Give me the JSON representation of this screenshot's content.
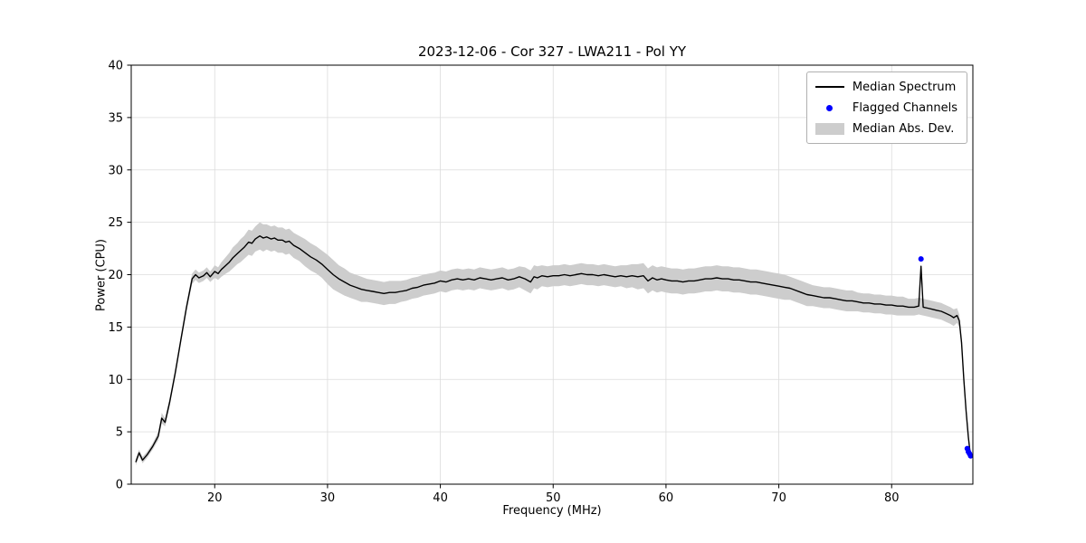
{
  "chart_data": {
    "type": "line",
    "title": "2023-12-06 - Cor 327 - LWA211 - Pol YY",
    "xlabel": "Frequency (MHz)",
    "ylabel": "Power (CPU)",
    "xlim": [
      12.6,
      87.2
    ],
    "ylim": [
      0,
      40
    ],
    "xticks": [
      20,
      30,
      40,
      50,
      60,
      70,
      80
    ],
    "yticks": [
      0,
      5,
      10,
      15,
      20,
      25,
      30,
      35,
      40
    ],
    "grid": true,
    "legend_position": "upper right",
    "legend": [
      "Median Spectrum",
      "Flagged Channels",
      "Median Abs. Dev."
    ],
    "colors": {
      "line": "#000000",
      "flagged": "#0000ff",
      "band": "#cdcdcd",
      "grid": "#dcdcdc"
    },
    "x": [
      13.0,
      13.3,
      13.6,
      14.0,
      14.5,
      15.0,
      15.3,
      15.6,
      16.0,
      16.5,
      17.0,
      17.5,
      18.0,
      18.3,
      18.6,
      19.0,
      19.3,
      19.6,
      20.0,
      20.3,
      20.6,
      21.0,
      21.3,
      21.6,
      22.0,
      22.3,
      22.6,
      23.0,
      23.3,
      23.6,
      24.0,
      24.3,
      24.6,
      25.0,
      25.3,
      25.6,
      26.0,
      26.3,
      26.6,
      27.0,
      27.5,
      28.0,
      28.5,
      29.0,
      29.5,
      30.0,
      30.5,
      31.0,
      31.5,
      32.0,
      32.5,
      33.0,
      33.5,
      34.0,
      34.5,
      35.0,
      35.5,
      36.0,
      36.5,
      37.0,
      37.5,
      38.0,
      38.5,
      39.0,
      39.5,
      40.0,
      40.5,
      41.0,
      41.5,
      42.0,
      42.5,
      43.0,
      43.5,
      44.0,
      44.5,
      45.0,
      45.5,
      46.0,
      46.5,
      47.0,
      47.5,
      48.0,
      48.3,
      48.6,
      49.0,
      49.5,
      50.0,
      50.5,
      51.0,
      51.5,
      52.0,
      52.5,
      53.0,
      53.5,
      54.0,
      54.5,
      55.0,
      55.5,
      56.0,
      56.5,
      57.0,
      57.5,
      58.0,
      58.4,
      58.8,
      59.2,
      59.6,
      60.0,
      60.5,
      61.0,
      61.5,
      62.0,
      62.5,
      63.0,
      63.5,
      64.0,
      64.5,
      65.0,
      65.5,
      66.0,
      66.5,
      67.0,
      67.5,
      68.0,
      68.5,
      69.0,
      69.5,
      70.0,
      70.5,
      71.0,
      71.5,
      72.0,
      72.5,
      73.0,
      73.5,
      74.0,
      74.5,
      75.0,
      75.5,
      76.0,
      76.5,
      77.0,
      77.5,
      78.0,
      78.5,
      79.0,
      79.5,
      80.0,
      80.5,
      81.0,
      81.5,
      82.0,
      82.4,
      82.6,
      82.8,
      83.2,
      83.6,
      84.0,
      84.4,
      84.8,
      85.2,
      85.5,
      85.8,
      86.0,
      86.2,
      86.4,
      86.6,
      86.8,
      87.0
    ],
    "median": [
      2.1,
      3.0,
      2.3,
      2.8,
      3.6,
      4.6,
      6.3,
      5.9,
      7.8,
      10.6,
      13.8,
      16.9,
      19.6,
      20.0,
      19.7,
      19.9,
      20.2,
      19.8,
      20.3,
      20.1,
      20.5,
      20.9,
      21.2,
      21.6,
      22.0,
      22.3,
      22.6,
      23.1,
      23.0,
      23.4,
      23.7,
      23.5,
      23.6,
      23.4,
      23.5,
      23.3,
      23.3,
      23.1,
      23.2,
      22.8,
      22.5,
      22.1,
      21.7,
      21.4,
      21.0,
      20.5,
      20.0,
      19.6,
      19.3,
      19.0,
      18.8,
      18.6,
      18.5,
      18.4,
      18.3,
      18.2,
      18.3,
      18.3,
      18.4,
      18.5,
      18.7,
      18.8,
      19.0,
      19.1,
      19.2,
      19.4,
      19.3,
      19.5,
      19.6,
      19.5,
      19.6,
      19.5,
      19.7,
      19.6,
      19.5,
      19.6,
      19.7,
      19.5,
      19.6,
      19.8,
      19.6,
      19.3,
      19.8,
      19.7,
      19.9,
      19.8,
      19.9,
      19.9,
      20.0,
      19.9,
      20.0,
      20.1,
      20.0,
      20.0,
      19.9,
      20.0,
      19.9,
      19.8,
      19.9,
      19.8,
      19.9,
      19.8,
      19.9,
      19.4,
      19.7,
      19.5,
      19.6,
      19.5,
      19.4,
      19.4,
      19.3,
      19.4,
      19.4,
      19.5,
      19.6,
      19.6,
      19.7,
      19.6,
      19.6,
      19.5,
      19.5,
      19.4,
      19.3,
      19.3,
      19.2,
      19.1,
      19.0,
      18.9,
      18.8,
      18.7,
      18.5,
      18.3,
      18.1,
      18.0,
      17.9,
      17.8,
      17.8,
      17.7,
      17.6,
      17.5,
      17.5,
      17.4,
      17.3,
      17.3,
      17.2,
      17.2,
      17.1,
      17.1,
      17.0,
      17.0,
      16.9,
      16.9,
      17.0,
      20.8,
      16.9,
      16.8,
      16.7,
      16.6,
      16.5,
      16.3,
      16.1,
      15.9,
      16.1,
      15.6,
      13.5,
      10.0,
      7.0,
      4.5,
      2.6
    ],
    "mad": [
      0.3,
      0.3,
      0.3,
      0.3,
      0.3,
      0.4,
      0.5,
      0.4,
      0.4,
      0.4,
      0.4,
      0.4,
      0.5,
      0.5,
      0.5,
      0.5,
      0.5,
      0.5,
      0.6,
      0.6,
      0.7,
      0.8,
      0.9,
      1.0,
      1.0,
      1.1,
      1.1,
      1.2,
      1.2,
      1.2,
      1.3,
      1.3,
      1.2,
      1.2,
      1.2,
      1.2,
      1.2,
      1.2,
      1.2,
      1.2,
      1.2,
      1.3,
      1.3,
      1.3,
      1.3,
      1.4,
      1.4,
      1.3,
      1.3,
      1.2,
      1.2,
      1.2,
      1.1,
      1.1,
      1.1,
      1.1,
      1.1,
      1.1,
      1.0,
      1.0,
      1.0,
      1.0,
      1.0,
      1.0,
      1.0,
      1.0,
      1.0,
      1.0,
      1.0,
      1.0,
      1.0,
      1.0,
      1.0,
      1.0,
      1.0,
      1.0,
      1.0,
      1.0,
      1.0,
      1.0,
      1.1,
      1.1,
      1.1,
      1.1,
      1.0,
      1.0,
      1.0,
      1.0,
      1.0,
      1.0,
      1.0,
      1.0,
      1.0,
      1.0,
      1.0,
      1.0,
      1.0,
      1.0,
      1.0,
      1.1,
      1.1,
      1.2,
      1.2,
      1.2,
      1.2,
      1.2,
      1.2,
      1.2,
      1.2,
      1.2,
      1.2,
      1.2,
      1.2,
      1.2,
      1.2,
      1.2,
      1.2,
      1.2,
      1.2,
      1.2,
      1.2,
      1.2,
      1.2,
      1.2,
      1.2,
      1.2,
      1.2,
      1.2,
      1.2,
      1.1,
      1.1,
      1.1,
      1.1,
      1.0,
      1.0,
      1.0,
      1.0,
      1.0,
      1.0,
      1.0,
      1.0,
      0.9,
      0.9,
      0.9,
      0.9,
      0.9,
      0.9,
      0.9,
      0.9,
      0.9,
      0.8,
      0.8,
      0.8,
      0.8,
      0.8,
      0.8,
      0.8,
      0.8,
      0.8,
      0.8,
      0.8,
      0.8,
      0.7,
      0.6,
      0.5,
      0.5,
      0.4,
      0.4,
      0.3
    ],
    "flagged": {
      "x": [
        82.6,
        86.7,
        86.8,
        86.9,
        87.0
      ],
      "y": [
        21.5,
        3.4,
        3.1,
        2.9,
        2.7
      ]
    }
  }
}
